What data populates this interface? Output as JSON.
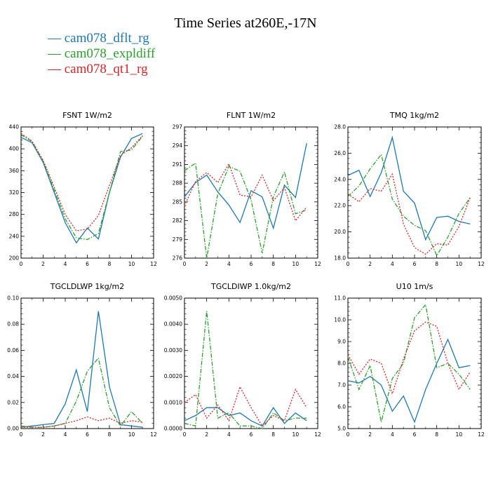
{
  "title": "Time Series at260E,-17N",
  "legend": [
    {
      "label": "cam078_dflt_rg",
      "color": "#1f77b4"
    },
    {
      "label": "cam078_expldiff",
      "color": "#2ca02c"
    },
    {
      "label": "cam078_qt1_rg",
      "color": "#d62728"
    }
  ],
  "chart_data": [
    {
      "type": "line",
      "title": "FSNT   1W/m2",
      "x": [
        0,
        1,
        2,
        3,
        4,
        5,
        6,
        7,
        8,
        9,
        10,
        11
      ],
      "xlim": [
        0,
        12
      ],
      "xticks": [
        "0",
        "2",
        "4",
        "6",
        "8",
        "10",
        "12"
      ],
      "ylim": [
        200,
        440
      ],
      "yticks": [
        "200",
        "240",
        "280",
        "320",
        "360",
        "400",
        "440"
      ],
      "series": [
        {
          "name": "cam078_dflt_rg",
          "color": "#1f77b4",
          "style": "solid",
          "values": [
            421,
            411,
            375,
            320,
            265,
            228,
            255,
            235,
            320,
            385,
            419,
            428
          ]
        },
        {
          "name": "cam078_expldiff",
          "color": "#2ca02c",
          "style": "dashdot",
          "values": [
            426,
            413,
            377,
            325,
            272,
            237,
            234,
            245,
            320,
            395,
            398,
            423
          ]
        },
        {
          "name": "cam078_qt1_rg",
          "color": "#d62728",
          "style": "dotted",
          "values": [
            428,
            414,
            379,
            330,
            280,
            250,
            253,
            278,
            333,
            388,
            402,
            424
          ]
        }
      ]
    },
    {
      "type": "line",
      "title": "FLNT   1W/m2",
      "x": [
        0,
        1,
        2,
        3,
        4,
        5,
        6,
        7,
        8,
        9,
        10,
        11
      ],
      "xlim": [
        0,
        12
      ],
      "xticks": [
        "0",
        "2",
        "4",
        "6",
        "8",
        "10",
        "12"
      ],
      "ylim": [
        276,
        297
      ],
      "yticks": [
        "276",
        "279",
        "282",
        "285",
        "288",
        "291",
        "294",
        "297"
      ],
      "series": [
        {
          "name": "cam078_dflt_rg",
          "color": "#1f77b4",
          "style": "solid",
          "values": [
            285.8,
            288.1,
            289.3,
            286.6,
            284.5,
            281.7,
            286.8,
            285.8,
            280.8,
            287.7,
            285.7,
            294.4
          ]
        },
        {
          "name": "cam078_expldiff",
          "color": "#2ca02c",
          "style": "dashdot",
          "values": [
            290.0,
            291.2,
            276.0,
            286.3,
            290.7,
            289.9,
            285.3,
            276.8,
            285.8,
            289.8,
            283.1,
            283.7
          ]
        },
        {
          "name": "cam078_qt1_rg",
          "color": "#d62728",
          "style": "dotted",
          "values": [
            284.4,
            288.3,
            289.7,
            288.1,
            291.1,
            286.1,
            285.8,
            289.3,
            285.2,
            287.3,
            282.0,
            284.2
          ]
        }
      ]
    },
    {
      "type": "line",
      "title": "TMQ   1kg/m2",
      "x": [
        0,
        1,
        2,
        3,
        4,
        5,
        6,
        7,
        8,
        9,
        10,
        11
      ],
      "xlim": [
        0,
        12
      ],
      "xticks": [
        "0",
        "2",
        "4",
        "6",
        "8",
        "10",
        "12"
      ],
      "ylim": [
        18.0,
        28.0
      ],
      "yticks": [
        "18.0",
        "20.0",
        "22.0",
        "24.0",
        "26.0",
        "28.0"
      ],
      "series": [
        {
          "name": "cam078_dflt_rg",
          "color": "#1f77b4",
          "style": "solid",
          "values": [
            24.3,
            24.7,
            22.7,
            24.5,
            27.2,
            23.1,
            22.2,
            19.4,
            21.1,
            21.2,
            20.8,
            20.6
          ]
        },
        {
          "name": "cam078_expldiff",
          "color": "#2ca02c",
          "style": "dashdot",
          "values": [
            22.7,
            23.5,
            24.8,
            25.9,
            22.5,
            21.2,
            20.5,
            20.1,
            18.2,
            19.6,
            21.4,
            22.6
          ]
        },
        {
          "name": "cam078_qt1_rg",
          "color": "#d62728",
          "style": "dotted",
          "values": [
            22.9,
            22.3,
            23.3,
            23.1,
            24.4,
            20.6,
            18.8,
            18.3,
            19.1,
            19.0,
            20.4,
            22.6
          ]
        }
      ]
    },
    {
      "type": "line",
      "title": "TGCLDLWP   1kg/m2",
      "x": [
        0,
        1,
        2,
        3,
        4,
        5,
        6,
        7,
        8,
        9,
        10,
        11
      ],
      "xlim": [
        0,
        12
      ],
      "xticks": [
        "0",
        "2",
        "4",
        "6",
        "8",
        "10",
        "12"
      ],
      "ylim": [
        0.0,
        0.1
      ],
      "yticks": [
        "0.00",
        "0.02",
        "0.04",
        "0.06",
        "0.08",
        "0.10"
      ],
      "series": [
        {
          "name": "cam078_dflt_rg",
          "color": "#1f77b4",
          "style": "solid",
          "values": [
            0.001,
            0.002,
            0.003,
            0.004,
            0.019,
            0.045,
            0.013,
            0.09,
            0.032,
            0.003,
            0.002,
            0.001
          ]
        },
        {
          "name": "cam078_expldiff",
          "color": "#2ca02c",
          "style": "dashdot",
          "values": [
            0.002,
            0.001,
            0.001,
            0.002,
            0.004,
            0.021,
            0.044,
            0.054,
            0.016,
            0.002,
            0.013,
            0.004
          ]
        },
        {
          "name": "cam078_qt1_rg",
          "color": "#d62728",
          "style": "dotted",
          "values": [
            0.001,
            0.001,
            0.001,
            0.002,
            0.004,
            0.006,
            0.009,
            0.006,
            0.008,
            0.004,
            0.006,
            0.005
          ]
        }
      ]
    },
    {
      "type": "line",
      "title": "TGCLDIWP   1.0kg/m2",
      "x": [
        0,
        1,
        2,
        3,
        4,
        5,
        6,
        7,
        8,
        9,
        10,
        11
      ],
      "xlim": [
        0,
        12
      ],
      "xticks": [
        "0",
        "2",
        "4",
        "6",
        "8",
        "10",
        "12"
      ],
      "ylim": [
        0.0,
        0.005
      ],
      "yticks": [
        "0.0000",
        "0.0010",
        "0.0020",
        "0.0030",
        "0.0040",
        "0.0050"
      ],
      "series": [
        {
          "name": "cam078_dflt_rg",
          "color": "#1f77b4",
          "style": "solid",
          "values": [
            0.0003,
            0.0005,
            0.0008,
            0.0008,
            0.0005,
            0.0006,
            0.0003,
            0.0001,
            0.0008,
            0.0002,
            0.0006,
            0.0003
          ]
        },
        {
          "name": "cam078_expldiff",
          "color": "#2ca02c",
          "style": "dashdot",
          "values": [
            0.0002,
            0.0001,
            0.0045,
            0.0004,
            0.0006,
            0.0001,
            0.0001,
            0.0,
            0.0006,
            0.0003,
            0.0004,
            0.0004
          ]
        },
        {
          "name": "cam078_qt1_rg",
          "color": "#d62728",
          "style": "dotted",
          "values": [
            0.001,
            0.0013,
            0.0004,
            0.0009,
            0.0003,
            0.0016,
            0.0008,
            0.0001,
            0.0005,
            0.0003,
            0.0015,
            0.0008
          ]
        }
      ]
    },
    {
      "type": "line",
      "title": "U10   1m/s",
      "x": [
        0,
        1,
        2,
        3,
        4,
        5,
        6,
        7,
        8,
        9,
        10,
        11
      ],
      "xlim": [
        0,
        12
      ],
      "xticks": [
        "0",
        "2",
        "4",
        "6",
        "8",
        "10",
        "12"
      ],
      "ylim": [
        5.0,
        11.0
      ],
      "yticks": [
        "5.0",
        "6.0",
        "7.0",
        "8.0",
        "9.0",
        "10.0",
        "11.0"
      ],
      "series": [
        {
          "name": "cam078_dflt_rg",
          "color": "#1f77b4",
          "style": "solid",
          "values": [
            7.2,
            7.1,
            7.4,
            7.0,
            5.8,
            6.5,
            5.3,
            6.8,
            8.0,
            9.1,
            7.8,
            7.9
          ]
        },
        {
          "name": "cam078_expldiff",
          "color": "#2ca02c",
          "style": "dashdot",
          "values": [
            8.3,
            6.8,
            7.9,
            5.3,
            7.3,
            8.0,
            10.1,
            10.7,
            7.8,
            8.0,
            7.5,
            6.8
          ]
        },
        {
          "name": "cam078_qt1_rg",
          "color": "#d62728",
          "style": "dotted",
          "values": [
            8.4,
            7.5,
            8.2,
            8.0,
            6.6,
            8.2,
            9.5,
            9.9,
            9.7,
            8.0,
            6.8,
            7.6
          ]
        }
      ]
    }
  ]
}
